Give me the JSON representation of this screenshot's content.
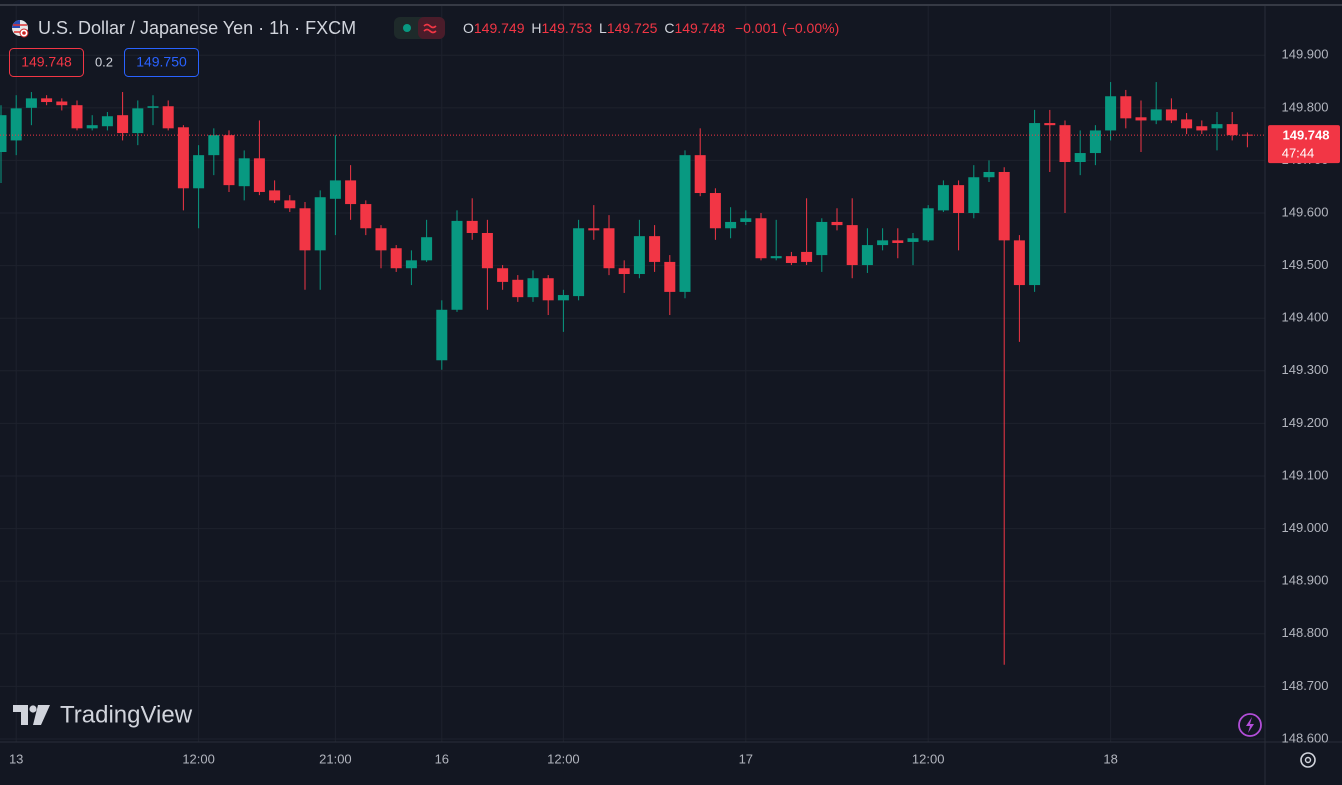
{
  "chart_data": {
    "type": "candlestick",
    "title": "U.S. Dollar / Japanese Yen · 1h · FXCM",
    "up_color": "#089981",
    "down_color": "#f23645",
    "grid": true,
    "categories": [
      null,
      "13",
      null,
      null,
      null,
      null,
      null,
      null,
      null,
      null,
      null,
      null,
      null,
      "12:00",
      null,
      null,
      null,
      null,
      null,
      null,
      null,
      null,
      "21:00",
      null,
      null,
      null,
      null,
      null,
      null,
      "16",
      null,
      null,
      null,
      null,
      null,
      null,
      null,
      "12:00",
      null,
      null,
      null,
      null,
      null,
      null,
      null,
      null,
      null,
      null,
      null,
      "17",
      null,
      null,
      null,
      null,
      null,
      null,
      null,
      null,
      null,
      null,
      null,
      "12:00",
      null,
      null,
      null,
      null,
      null,
      null,
      null,
      null,
      null,
      null,
      null,
      "18",
      null,
      null,
      null,
      null,
      null,
      null,
      null,
      null,
      null
    ],
    "open": [
      149.716,
      149.738,
      149.8,
      149.818,
      149.812,
      149.805,
      149.761,
      149.765,
      149.786,
      149.752,
      149.8,
      149.803,
      149.763,
      149.647,
      149.71,
      149.748,
      149.651,
      149.704,
      149.643,
      149.624,
      149.609,
      149.529,
      149.627,
      149.662,
      149.617,
      149.571,
      149.533,
      149.495,
      149.51,
      149.32,
      149.416,
      149.585,
      149.562,
      149.495,
      149.473,
      149.44,
      149.476,
      149.434,
      149.442,
      149.571,
      149.571,
      149.495,
      149.484,
      149.556,
      149.507,
      149.45,
      149.71,
      149.638,
      149.571,
      149.583,
      149.59,
      149.514,
      149.518,
      149.526,
      149.52,
      149.583,
      149.577,
      149.501,
      149.539,
      149.548,
      149.545,
      149.548,
      149.605,
      149.653,
      149.6,
      149.668,
      149.678,
      149.548,
      149.463,
      149.771,
      149.767,
      149.697,
      149.714,
      149.757,
      149.822,
      149.782,
      149.776,
      149.797,
      149.778,
      149.765,
      149.761,
      149.769,
      149.749
    ],
    "high": [
      149.805,
      149.824,
      149.83,
      149.824,
      149.818,
      149.814,
      149.786,
      149.792,
      149.83,
      149.814,
      149.824,
      149.814,
      149.767,
      149.729,
      149.761,
      149.757,
      149.719,
      149.776,
      149.662,
      149.634,
      149.621,
      149.643,
      149.748,
      149.691,
      149.624,
      149.577,
      149.539,
      149.529,
      149.587,
      149.434,
      149.605,
      149.628,
      149.587,
      149.501,
      149.482,
      149.491,
      149.482,
      149.454,
      149.587,
      149.615,
      149.596,
      149.51,
      149.587,
      149.577,
      149.52,
      149.719,
      149.761,
      149.647,
      149.611,
      149.605,
      149.6,
      149.587,
      149.526,
      149.628,
      149.59,
      149.609,
      149.628,
      149.571,
      149.571,
      149.571,
      149.562,
      149.615,
      149.662,
      149.662,
      149.691,
      149.7,
      149.687,
      149.558,
      149.796,
      149.796,
      149.776,
      149.757,
      149.767,
      149.849,
      149.834,
      149.814,
      149.849,
      149.818,
      149.79,
      149.776,
      149.792,
      149.792,
      149.753
    ],
    "low": [
      149.657,
      149.71,
      149.767,
      149.805,
      149.795,
      149.757,
      149.757,
      149.757,
      149.738,
      149.729,
      149.767,
      149.757,
      149.605,
      149.571,
      149.672,
      149.64,
      149.624,
      149.634,
      149.619,
      149.602,
      149.454,
      149.454,
      149.558,
      149.587,
      149.558,
      149.495,
      149.488,
      149.463,
      149.507,
      149.302,
      149.412,
      149.549,
      149.416,
      149.454,
      149.431,
      149.431,
      149.406,
      149.374,
      149.434,
      149.549,
      149.482,
      149.448,
      149.476,
      149.488,
      149.406,
      149.438,
      149.632,
      149.549,
      149.552,
      149.577,
      149.51,
      149.51,
      149.501,
      149.501,
      149.488,
      149.567,
      149.476,
      149.486,
      149.529,
      149.514,
      149.501,
      149.545,
      149.602,
      149.529,
      149.59,
      149.659,
      148.741,
      149.355,
      149.45,
      149.678,
      149.6,
      149.672,
      149.691,
      149.738,
      149.761,
      149.716,
      149.769,
      149.771,
      149.75,
      149.75,
      149.719,
      149.738,
      149.725
    ],
    "close": [
      149.786,
      149.799,
      149.818,
      149.811,
      149.805,
      149.761,
      149.767,
      149.784,
      149.752,
      149.799,
      149.803,
      149.761,
      149.647,
      149.71,
      149.748,
      149.653,
      149.704,
      149.64,
      149.624,
      149.609,
      149.529,
      149.63,
      149.662,
      149.617,
      149.571,
      149.529,
      149.495,
      149.51,
      149.554,
      149.416,
      149.585,
      149.562,
      149.495,
      149.469,
      149.44,
      149.476,
      149.434,
      149.444,
      149.571,
      149.567,
      149.495,
      149.484,
      149.556,
      149.507,
      149.45,
      149.71,
      149.638,
      149.571,
      149.583,
      149.59,
      149.514,
      149.518,
      149.505,
      149.507,
      149.583,
      149.577,
      149.501,
      149.539,
      149.548,
      149.543,
      149.552,
      149.609,
      149.653,
      149.6,
      149.668,
      149.678,
      149.548,
      149.463,
      149.771,
      149.767,
      149.697,
      149.714,
      149.757,
      149.822,
      149.78,
      149.776,
      149.797,
      149.776,
      149.761,
      149.757,
      149.769,
      149.748,
      149.748
    ],
    "ylim": [
      148.598,
      150.005
    ],
    "yticks": [
      {
        "value": 148.6,
        "label": "148.600"
      },
      {
        "value": 148.7,
        "label": "148.700"
      },
      {
        "value": 148.8,
        "label": "148.800"
      },
      {
        "value": 148.9,
        "label": "148.900"
      },
      {
        "value": 149.0,
        "label": "149.000"
      },
      {
        "value": 149.1,
        "label": "149.100"
      },
      {
        "value": 149.2,
        "label": "149.200"
      },
      {
        "value": 149.3,
        "label": "149.300"
      },
      {
        "value": 149.4,
        "label": "149.400"
      },
      {
        "value": 149.5,
        "label": "149.500"
      },
      {
        "value": 149.6,
        "label": "149.600"
      },
      {
        "value": 149.7,
        "label": "149.700"
      },
      {
        "value": 149.8,
        "label": "149.800"
      },
      {
        "value": 149.9,
        "label": "149.900"
      }
    ],
    "ohlc_letters": [
      "O",
      "H",
      "L",
      "C"
    ],
    "change": "−0.001 (−0.00%)",
    "spread": "0.2",
    "ask": "149.750",
    "countdown": "47:44",
    "brand": "TradingView"
  }
}
